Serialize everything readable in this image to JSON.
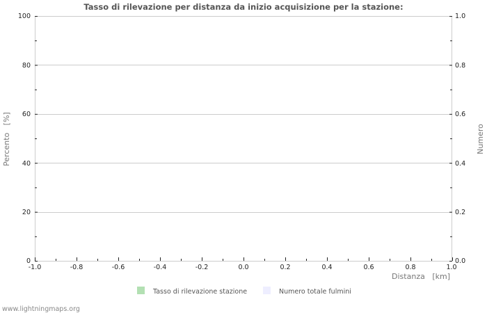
{
  "chart_data": {
    "type": "bar",
    "title": "Tasso di rilevazione per distanza da inizio acquisizione per la stazione:",
    "xlabel": "Distanza   [km]",
    "ylabel": "Percento   [%]",
    "y2label": "Numero",
    "xlim": [
      -1.0,
      1.0
    ],
    "ylim": [
      0,
      100
    ],
    "y2lim": [
      0.0,
      1.0
    ],
    "x_ticks": [
      "-1.0",
      "-0.8",
      "-0.6",
      "-0.4",
      "-0.2",
      "0.0",
      "0.2",
      "0.4",
      "0.6",
      "0.8",
      "1.0"
    ],
    "y_ticks": [
      "0",
      "20",
      "40",
      "60",
      "80",
      "100"
    ],
    "y2_ticks": [
      "0.0",
      "0.2",
      "0.4",
      "0.6",
      "0.8",
      "1.0"
    ],
    "grid": true,
    "categories": [],
    "series": [
      {
        "name": "Tasso di rilevazione stazione",
        "color": "#b3e0b3",
        "values": []
      },
      {
        "name": "Numero totale fulmini",
        "color": "#eeeeff",
        "values": []
      }
    ],
    "legend_position": "bottom"
  },
  "legend": {
    "items": [
      {
        "label": "Tasso di rilevazione stazione",
        "color": "#b3e0b3"
      },
      {
        "label": "Numero totale fulmini",
        "color": "#eeeeff"
      }
    ]
  },
  "footer": {
    "text": "www.lightningmaps.org"
  }
}
